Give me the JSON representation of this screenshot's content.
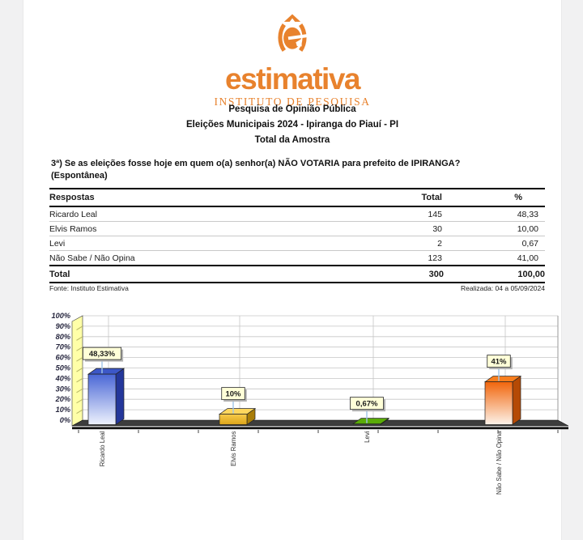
{
  "page": {
    "background": "#f1f1f2",
    "sheet_background": "#ffffff"
  },
  "logo": {
    "mark_icon": "e-circumflex-in-parentheses-icon",
    "word": "estimativa",
    "subtitle": "INSTITUTO DE PESQUISA",
    "color": "#e8822d"
  },
  "header": {
    "line1": "Pesquisa de Opinião Pública",
    "line2": "Eleições Municipais 2024 - Ipiranga do Piauí - PI",
    "line3": "Total da Amostra"
  },
  "question": {
    "line1": "3ª) Se as eleições fosse hoje em quem o(a) senhor(a) NÃO VOTARIA para prefeito de IPIRANGA?",
    "line2": "(Espontânea)"
  },
  "table": {
    "headers": [
      "Respostas",
      "Total",
      "%"
    ],
    "rows": [
      [
        "Ricardo Leal",
        "145",
        "48,33"
      ],
      [
        "Elvis Ramos",
        "30",
        "10,00"
      ],
      [
        "Levi",
        "2",
        "0,67"
      ],
      [
        "Não Sabe / Não Opina",
        "123",
        "41,00"
      ]
    ],
    "total_row": [
      "Total",
      "300",
      "100,00"
    ]
  },
  "footer": {
    "source": "Fonte: Instituto Estimativa",
    "realizada": "Realizada: 04 a 05/09/2024"
  },
  "chart_data": {
    "type": "bar",
    "style": "excel-3d",
    "title": "",
    "xlabel": "",
    "ylabel": "",
    "categories": [
      "Ricardo Leal",
      "Elvis Ramos",
      "Levi",
      "Não Sabe / Não Opina"
    ],
    "values": [
      48.33,
      10,
      0.67,
      41
    ],
    "point_labels": [
      "48,33%",
      "10%",
      "0,67%",
      "41%"
    ],
    "ylim": [
      0,
      100
    ],
    "yticks": [
      "0%",
      "10%",
      "20%",
      "30%",
      "40%",
      "50%",
      "60%",
      "70%",
      "80%",
      "90%",
      "100%"
    ],
    "grid": true,
    "legend": false,
    "bar_colors": [
      {
        "front_top": "#4a67d6",
        "front_bottom": "#eef2fd",
        "top": "#3c57c8",
        "side": "#24379b"
      },
      {
        "front_top": "#f7cb4a",
        "front_bottom": "#dca41a",
        "top": "#ffd75e",
        "side": "#a97d08"
      },
      {
        "front_top": "#57a509",
        "front_bottom": "#57a509",
        "top": "#5aab08",
        "side": "#2d6b00"
      },
      {
        "front_top": "#f1650b",
        "front_bottom": "#fdf3ea",
        "top": "#f87e1e",
        "side": "#b54a05"
      }
    ],
    "wall_color": "#ffffa8",
    "floor_color": "#3d3d3d",
    "label_box_color": "#ffffd8",
    "connector_color": "#9fc5e8",
    "axis_text_color": "#26263e"
  }
}
